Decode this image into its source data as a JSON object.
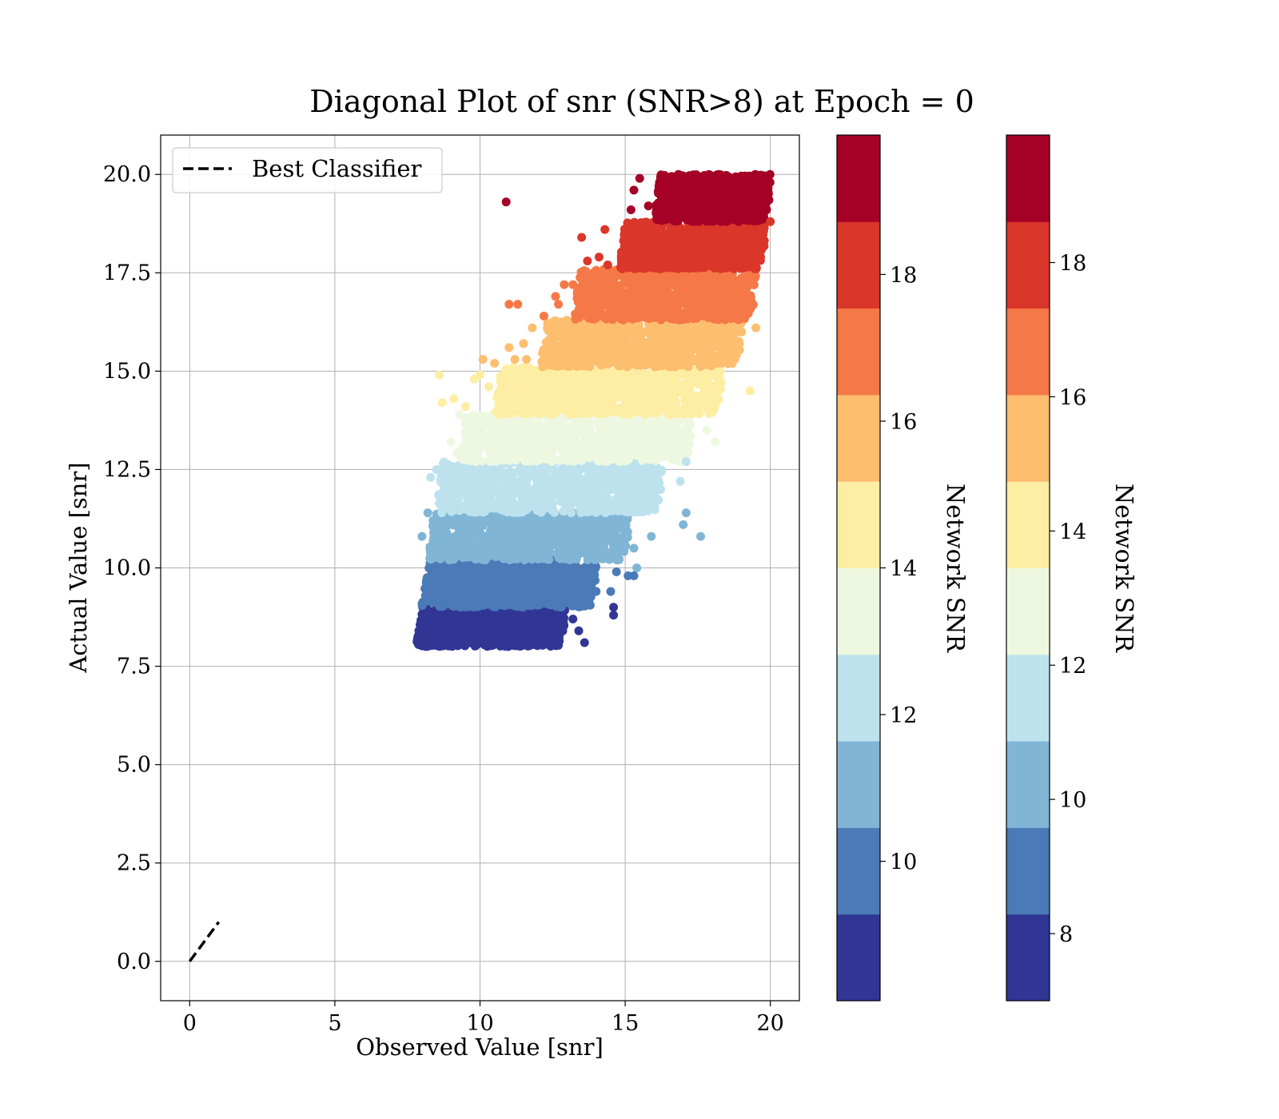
{
  "chart_data": {
    "type": "scatter",
    "title": "Diagonal Plot of snr (SNR>8) at Epoch = 0",
    "xlabel": "Observed Value [snr]",
    "ylabel": "Actual Value [snr]",
    "xlim": [
      -1,
      21
    ],
    "ylim": [
      -1,
      21
    ],
    "xticks": [
      0,
      5,
      10,
      15,
      20
    ],
    "xtick_labels": [
      "0",
      "5",
      "10",
      "15",
      "20"
    ],
    "yticks": [
      0,
      2.5,
      5,
      7.5,
      10,
      12.5,
      15,
      17.5,
      20
    ],
    "ytick_labels": [
      "0.0",
      "2.5",
      "5.0",
      "7.5",
      "10.0",
      "12.5",
      "15.0",
      "17.5",
      "20.0"
    ],
    "grid": true,
    "legend": {
      "placement": "upper-left",
      "entries": [
        "Best Classifier"
      ]
    },
    "reference_line": {
      "name": "Best Classifier",
      "style": "dashed",
      "color": "#000000",
      "x": [
        0,
        1
      ],
      "y": [
        0,
        1
      ]
    },
    "scatter_bands": [
      {
        "y_range": [
          8.0,
          9.0
        ],
        "x_range": [
          7.9,
          12.9
        ],
        "color": "#313695"
      },
      {
        "y_range": [
          9.0,
          10.2
        ],
        "x_range": [
          8.1,
          14.0
        ],
        "color": "#4a7ab7"
      },
      {
        "y_range": [
          10.2,
          11.4
        ],
        "x_range": [
          8.3,
          15.1
        ],
        "color": "#80b5d5"
      },
      {
        "y_range": [
          11.4,
          12.7
        ],
        "x_range": [
          8.6,
          16.3
        ],
        "color": "#bde2ee"
      },
      {
        "y_range": [
          12.7,
          13.9
        ],
        "x_range": [
          9.4,
          17.3
        ],
        "color": "#eef8e1"
      },
      {
        "y_range": [
          13.9,
          15.1
        ],
        "x_range": [
          10.6,
          18.3
        ],
        "color": "#feeea3"
      },
      {
        "y_range": [
          15.1,
          16.3
        ],
        "x_range": [
          12.2,
          19.0
        ],
        "color": "#fdbe70"
      },
      {
        "y_range": [
          16.3,
          17.6
        ],
        "x_range": [
          13.3,
          19.5
        ],
        "color": "#f57948"
      },
      {
        "y_range": [
          17.6,
          18.8
        ],
        "x_range": [
          14.9,
          19.8
        ],
        "color": "#da362a"
      },
      {
        "y_range": [
          18.8,
          20.0
        ],
        "x_range": [
          16.1,
          20.0
        ],
        "color": "#a50026"
      }
    ],
    "outliers": [
      {
        "x": 10.9,
        "y": 19.3,
        "color": "#a50026"
      },
      {
        "x": 15.2,
        "y": 19.1,
        "color": "#a50026"
      },
      {
        "x": 15.5,
        "y": 19.9,
        "color": "#a50026"
      },
      {
        "x": 15.3,
        "y": 19.6,
        "color": "#a50026"
      },
      {
        "x": 15.8,
        "y": 19.2,
        "color": "#a50026"
      },
      {
        "x": 20.0,
        "y": 18.8,
        "color": "#da362a"
      },
      {
        "x": 13.5,
        "y": 18.4,
        "color": "#da362a"
      },
      {
        "x": 14.3,
        "y": 18.6,
        "color": "#da362a"
      },
      {
        "x": 13.7,
        "y": 17.8,
        "color": "#da362a"
      },
      {
        "x": 14.1,
        "y": 17.9,
        "color": "#da362a"
      },
      {
        "x": 14.4,
        "y": 17.7,
        "color": "#da362a"
      },
      {
        "x": 11.0,
        "y": 16.7,
        "color": "#f57948"
      },
      {
        "x": 11.3,
        "y": 16.7,
        "color": "#f57948"
      },
      {
        "x": 12.2,
        "y": 16.4,
        "color": "#f57948"
      },
      {
        "x": 12.6,
        "y": 16.9,
        "color": "#f57948"
      },
      {
        "x": 12.9,
        "y": 17.2,
        "color": "#f57948"
      },
      {
        "x": 13.2,
        "y": 17.2,
        "color": "#f57948"
      },
      {
        "x": 12.7,
        "y": 16.7,
        "color": "#f57948"
      },
      {
        "x": 10.1,
        "y": 15.3,
        "color": "#fdbe70"
      },
      {
        "x": 10.5,
        "y": 15.2,
        "color": "#fdbe70"
      },
      {
        "x": 11.0,
        "y": 15.6,
        "color": "#fdbe70"
      },
      {
        "x": 11.5,
        "y": 15.7,
        "color": "#fdbe70"
      },
      {
        "x": 11.8,
        "y": 16.1,
        "color": "#fdbe70"
      },
      {
        "x": 19.5,
        "y": 16.1,
        "color": "#fdbe70"
      },
      {
        "x": 11.2,
        "y": 15.3,
        "color": "#fdbe70"
      },
      {
        "x": 11.6,
        "y": 15.3,
        "color": "#fdbe70"
      },
      {
        "x": 8.6,
        "y": 14.9,
        "color": "#feeea3"
      },
      {
        "x": 8.7,
        "y": 14.2,
        "color": "#feeea3"
      },
      {
        "x": 9.1,
        "y": 14.3,
        "color": "#feeea3"
      },
      {
        "x": 9.5,
        "y": 14.1,
        "color": "#feeea3"
      },
      {
        "x": 9.8,
        "y": 14.8,
        "color": "#feeea3"
      },
      {
        "x": 10.0,
        "y": 14.9,
        "color": "#feeea3"
      },
      {
        "x": 10.3,
        "y": 14.6,
        "color": "#feeea3"
      },
      {
        "x": 19.3,
        "y": 14.5,
        "color": "#feeea3"
      },
      {
        "x": 9.3,
        "y": 13.9,
        "color": "#eef8e1"
      },
      {
        "x": 9.0,
        "y": 13.2,
        "color": "#eef8e1"
      },
      {
        "x": 9.2,
        "y": 12.9,
        "color": "#eef8e1"
      },
      {
        "x": 18.1,
        "y": 13.2,
        "color": "#eef8e1"
      },
      {
        "x": 17.8,
        "y": 13.5,
        "color": "#eef8e1"
      },
      {
        "x": 8.3,
        "y": 12.3,
        "color": "#bde2ee"
      },
      {
        "x": 8.5,
        "y": 12.5,
        "color": "#bde2ee"
      },
      {
        "x": 17.1,
        "y": 12.7,
        "color": "#bde2ee"
      },
      {
        "x": 16.9,
        "y": 12.2,
        "color": "#bde2ee"
      },
      {
        "x": 8.0,
        "y": 10.8,
        "color": "#80b5d5"
      },
      {
        "x": 8.2,
        "y": 11.4,
        "color": "#80b5d5"
      },
      {
        "x": 17.6,
        "y": 10.8,
        "color": "#80b5d5"
      },
      {
        "x": 17.1,
        "y": 11.4,
        "color": "#80b5d5"
      },
      {
        "x": 17.0,
        "y": 11.1,
        "color": "#80b5d5"
      },
      {
        "x": 15.9,
        "y": 10.8,
        "color": "#80b5d5"
      },
      {
        "x": 15.3,
        "y": 10.5,
        "color": "#80b5d5"
      },
      {
        "x": 15.4,
        "y": 10.0,
        "color": "#80b5d5"
      },
      {
        "x": 15.1,
        "y": 9.8,
        "color": "#4a7ab7"
      },
      {
        "x": 15.3,
        "y": 9.8,
        "color": "#4a7ab7"
      },
      {
        "x": 14.7,
        "y": 9.9,
        "color": "#4a7ab7"
      },
      {
        "x": 14.0,
        "y": 9.4,
        "color": "#4a7ab7"
      },
      {
        "x": 14.5,
        "y": 9.4,
        "color": "#4a7ab7"
      },
      {
        "x": 14.6,
        "y": 9.0,
        "color": "#313695"
      },
      {
        "x": 14.6,
        "y": 8.8,
        "color": "#313695"
      },
      {
        "x": 13.4,
        "y": 8.4,
        "color": "#313695"
      },
      {
        "x": 13.6,
        "y": 8.1,
        "color": "#313695"
      },
      {
        "x": 13.2,
        "y": 8.7,
        "color": "#313695"
      }
    ],
    "colorbars": [
      {
        "label": "Network SNR",
        "range": [
          8.1,
          19.9
        ],
        "ticks": [
          10,
          12,
          14,
          16,
          18
        ],
        "tick_labels": [
          "10",
          "12",
          "14",
          "16",
          "18"
        ],
        "colors": [
          "#313695",
          "#4a7ab7",
          "#80b5d5",
          "#bde2ee",
          "#eef8e1",
          "#feeea3",
          "#fdbe70",
          "#f57948",
          "#da362a",
          "#a50026"
        ]
      },
      {
        "label": "Network SNR",
        "range": [
          7.0,
          19.9
        ],
        "ticks": [
          8,
          10,
          12,
          14,
          16,
          18
        ],
        "tick_labels": [
          "8",
          "10",
          "12",
          "14",
          "16",
          "18"
        ],
        "colors": [
          "#313695",
          "#4a7ab7",
          "#80b5d5",
          "#bde2ee",
          "#eef8e1",
          "#feeea3",
          "#fdbe70",
          "#f57948",
          "#da362a",
          "#a50026"
        ]
      }
    ]
  }
}
